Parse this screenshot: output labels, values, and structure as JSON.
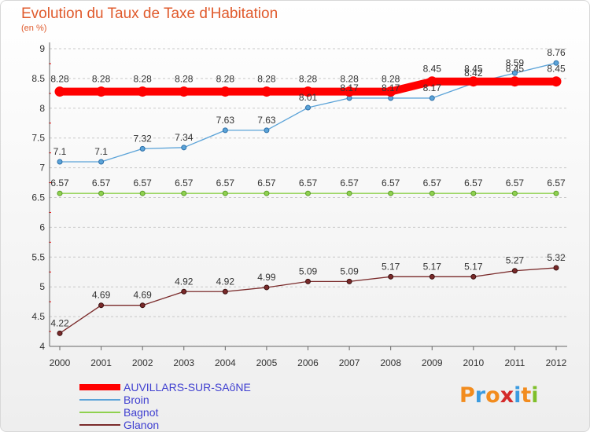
{
  "header": {
    "title": "Evolution du Taux de Taxe d'Habitation",
    "subtitle": "(en %)"
  },
  "logo": {
    "text": "Proxiti",
    "letters": [
      "P",
      "r",
      "o",
      "x",
      "i",
      "t",
      "i"
    ],
    "colors": [
      "#f28c1e",
      "#3b9be0",
      "#f28c1e",
      "#d42a2a",
      "#3b9be0",
      "#f28c1e",
      "#7fbf2a"
    ]
  },
  "chart_data": {
    "type": "line",
    "title": "Evolution du Taux de Taxe d'Habitation",
    "ylabel": "(en %)",
    "xlabel": "",
    "ylim": [
      4,
      9
    ],
    "yticks": [
      "4",
      "4.5",
      "5",
      "5.5",
      "6",
      "6.5",
      "7",
      "7.5",
      "8",
      "8.5",
      "9"
    ],
    "grid": "y-dashed",
    "x": [
      "2000",
      "2001",
      "2002",
      "2003",
      "2004",
      "2005",
      "2006",
      "2007",
      "2008",
      "2009",
      "2010",
      "2011",
      "2012"
    ],
    "series": [
      {
        "name": "AUVILLARS-SUR-SAôNE",
        "color": "#ff0000",
        "values": [
          8.28,
          8.28,
          8.28,
          8.28,
          8.28,
          8.28,
          8.28,
          8.28,
          8.28,
          8.45,
          8.45,
          8.45,
          8.45
        ],
        "labels": [
          "8.28",
          "8.28",
          "8.28",
          "8.28",
          "8.28",
          "8.28",
          "8.28",
          "8.28",
          "8.28",
          "8.45",
          "8.45",
          "8.45",
          "8.45"
        ]
      },
      {
        "name": "Broin",
        "color": "#5ba3d8",
        "values": [
          7.1,
          7.1,
          7.32,
          7.34,
          7.63,
          7.63,
          8.01,
          8.17,
          8.17,
          8.17,
          8.42,
          8.59,
          8.76
        ],
        "labels": [
          "7.1",
          "7.1",
          "7.32",
          "7.34",
          "7.63",
          "7.63",
          "8.01",
          "8.17",
          "8.17",
          "8.17",
          "8.42",
          "8.59",
          "8.76"
        ]
      },
      {
        "name": "Bagnot",
        "color": "#8fd14f",
        "values": [
          6.57,
          6.57,
          6.57,
          6.57,
          6.57,
          6.57,
          6.57,
          6.57,
          6.57,
          6.57,
          6.57,
          6.57,
          6.57
        ],
        "labels": [
          "6.57",
          "6.57",
          "6.57",
          "6.57",
          "6.57",
          "6.57",
          "6.57",
          "6.57",
          "6.57",
          "6.57",
          "6.57",
          "6.57",
          "6.57"
        ]
      },
      {
        "name": "Glanon",
        "color": "#7a2a2a",
        "values": [
          4.22,
          4.69,
          4.69,
          4.92,
          4.92,
          4.99,
          5.09,
          5.09,
          5.17,
          5.17,
          5.17,
          5.27,
          5.32
        ],
        "labels": [
          "4.22",
          "4.69",
          "4.69",
          "4.92",
          "4.92",
          "4.99",
          "5.09",
          "5.09",
          "5.17",
          "5.17",
          "5.17",
          "5.27",
          "5.32"
        ]
      }
    ]
  }
}
